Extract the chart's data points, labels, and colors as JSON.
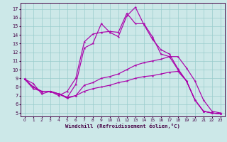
{
  "bg_color": "#cce8e8",
  "grid_color": "#99cccc",
  "line_color": "#aa00aa",
  "xlabel": "Windchill (Refroidissement éolien,°C)",
  "x_ticks": [
    0,
    1,
    2,
    3,
    4,
    5,
    6,
    7,
    8,
    9,
    10,
    11,
    12,
    13,
    14,
    15,
    16,
    17,
    18,
    19,
    20,
    21,
    22,
    23
  ],
  "y_ticks": [
    5,
    6,
    7,
    8,
    9,
    10,
    11,
    12,
    13,
    14,
    15,
    16,
    17
  ],
  "ylim": [
    4.6,
    17.7
  ],
  "xlim": [
    -0.5,
    23.5
  ],
  "s1_x": [
    0,
    1,
    2,
    3,
    4,
    5,
    6,
    7,
    8,
    9,
    10,
    11,
    12,
    13,
    14,
    15,
    16,
    17,
    18,
    19,
    20,
    21,
    22,
    23
  ],
  "s1_y": [
    8.9,
    8.4,
    7.2,
    7.5,
    7.2,
    6.8,
    8.3,
    12.5,
    13.0,
    15.3,
    14.3,
    13.8,
    16.2,
    17.2,
    15.2,
    13.5,
    12.3,
    11.8,
    10.1,
    8.7,
    6.5,
    5.2,
    5.0,
    4.9
  ],
  "s2_x": [
    0,
    1,
    2,
    3,
    4,
    5,
    6,
    7,
    8,
    9,
    10,
    11,
    12,
    13,
    14,
    15,
    16,
    17,
    18,
    19,
    20,
    21,
    22,
    23
  ],
  "s2_y": [
    8.9,
    7.8,
    7.5,
    7.5,
    7.0,
    7.5,
    9.0,
    13.2,
    14.1,
    14.3,
    14.4,
    14.3,
    16.5,
    15.3,
    15.3,
    13.8,
    11.8,
    11.5,
    10.0,
    8.7,
    6.5,
    5.2,
    5.0,
    4.9
  ],
  "s3_x": [
    0,
    1,
    2,
    3,
    4,
    5,
    6,
    7,
    8,
    9,
    10,
    11,
    12,
    13,
    14,
    15,
    16,
    17,
    18,
    19,
    20,
    21,
    22,
    23
  ],
  "s3_y": [
    8.9,
    8.0,
    7.5,
    7.5,
    7.2,
    6.7,
    7.0,
    8.2,
    8.5,
    9.0,
    9.2,
    9.5,
    10.0,
    10.5,
    10.8,
    11.0,
    11.2,
    11.5,
    11.5,
    10.2,
    8.7,
    6.5,
    5.2,
    5.0
  ],
  "s4_x": [
    0,
    1,
    2,
    3,
    4,
    5,
    6,
    7,
    8,
    9,
    10,
    11,
    12,
    13,
    14,
    15,
    16,
    17,
    18,
    19,
    20,
    21,
    22,
    23
  ],
  "s4_y": [
    8.9,
    8.0,
    7.5,
    7.5,
    7.2,
    6.8,
    7.0,
    7.5,
    7.8,
    8.0,
    8.2,
    8.5,
    8.7,
    9.0,
    9.2,
    9.3,
    9.5,
    9.7,
    9.8,
    8.7,
    6.5,
    5.2,
    5.0,
    4.9
  ]
}
